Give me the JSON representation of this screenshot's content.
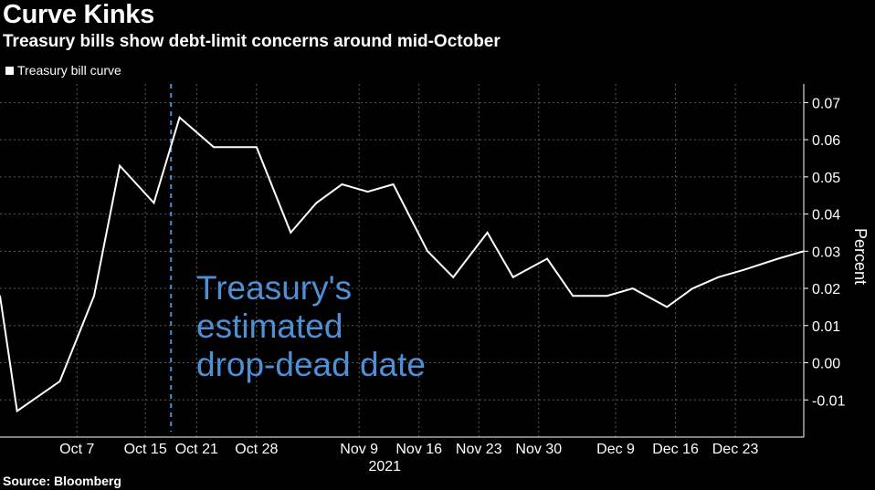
{
  "header": {
    "title": "Curve Kinks",
    "subtitle": "Treasury bills show debt-limit concerns around mid-October"
  },
  "legend": {
    "label": "Treasury bill curve"
  },
  "footer": {
    "source": "Source: Bloomberg"
  },
  "colors": {
    "background": "#000000",
    "line": "#ffffff",
    "annotation": "#4f8fd6",
    "grid": "#5a5a5a"
  },
  "chart_data": {
    "type": "line",
    "title": "Curve Kinks",
    "subtitle": "Treasury bills show debt-limit concerns around mid-October",
    "ylabel": "Percent",
    "xlabel": "",
    "year_label": "2021",
    "ylim": [
      -0.02,
      0.075
    ],
    "yticks": [
      -0.01,
      0.0,
      0.01,
      0.02,
      0.03,
      0.04,
      0.05,
      0.06,
      0.07
    ],
    "ytick_labels": [
      "-0.01",
      "0.00",
      "0.01",
      "0.02",
      "0.03",
      "0.04",
      "0.05",
      "0.06",
      "0.07"
    ],
    "xlim": [
      "2021-09-28",
      "2021-12-31"
    ],
    "xticks": [
      {
        "date": "2021-10-07",
        "label": "Oct 7"
      },
      {
        "date": "2021-10-15",
        "label": "Oct 15"
      },
      {
        "date": "2021-10-21",
        "label": "Oct 21"
      },
      {
        "date": "2021-10-28",
        "label": "Oct 28"
      },
      {
        "date": "2021-11-09",
        "label": "Nov 9"
      },
      {
        "date": "2021-11-16",
        "label": "Nov 16"
      },
      {
        "date": "2021-11-23",
        "label": "Nov 23"
      },
      {
        "date": "2021-11-30",
        "label": "Nov 30"
      },
      {
        "date": "2021-12-09",
        "label": "Dec 9"
      },
      {
        "date": "2021-12-16",
        "label": "Dec 16"
      },
      {
        "date": "2021-12-23",
        "label": "Dec 23"
      }
    ],
    "grid": true,
    "legend_position": "top-left",
    "series": [
      {
        "name": "Treasury bill curve",
        "points": [
          {
            "x": "2021-09-28",
            "y": 0.018
          },
          {
            "x": "2021-09-30",
            "y": -0.013
          },
          {
            "x": "2021-10-05",
            "y": -0.005
          },
          {
            "x": "2021-10-09",
            "y": 0.018
          },
          {
            "x": "2021-10-12",
            "y": 0.053
          },
          {
            "x": "2021-10-16",
            "y": 0.043
          },
          {
            "x": "2021-10-19",
            "y": 0.066
          },
          {
            "x": "2021-10-23",
            "y": 0.058
          },
          {
            "x": "2021-10-28",
            "y": 0.058
          },
          {
            "x": "2021-11-01",
            "y": 0.035
          },
          {
            "x": "2021-11-04",
            "y": 0.043
          },
          {
            "x": "2021-11-07",
            "y": 0.048
          },
          {
            "x": "2021-11-10",
            "y": 0.046
          },
          {
            "x": "2021-11-13",
            "y": 0.048
          },
          {
            "x": "2021-11-17",
            "y": 0.03
          },
          {
            "x": "2021-11-20",
            "y": 0.023
          },
          {
            "x": "2021-11-24",
            "y": 0.035
          },
          {
            "x": "2021-11-27",
            "y": 0.023
          },
          {
            "x": "2021-12-01",
            "y": 0.028
          },
          {
            "x": "2021-12-04",
            "y": 0.018
          },
          {
            "x": "2021-12-08",
            "y": 0.018
          },
          {
            "x": "2021-12-11",
            "y": 0.02
          },
          {
            "x": "2021-12-15",
            "y": 0.015
          },
          {
            "x": "2021-12-18",
            "y": 0.02
          },
          {
            "x": "2021-12-21",
            "y": 0.023
          },
          {
            "x": "2021-12-24",
            "y": 0.025
          },
          {
            "x": "2021-12-28",
            "y": 0.028
          },
          {
            "x": "2021-12-31",
            "y": 0.03
          }
        ]
      }
    ],
    "annotations": [
      {
        "date": "2021-10-18",
        "lines": [
          "Treasury's",
          "estimated",
          "drop-dead date"
        ]
      }
    ]
  }
}
